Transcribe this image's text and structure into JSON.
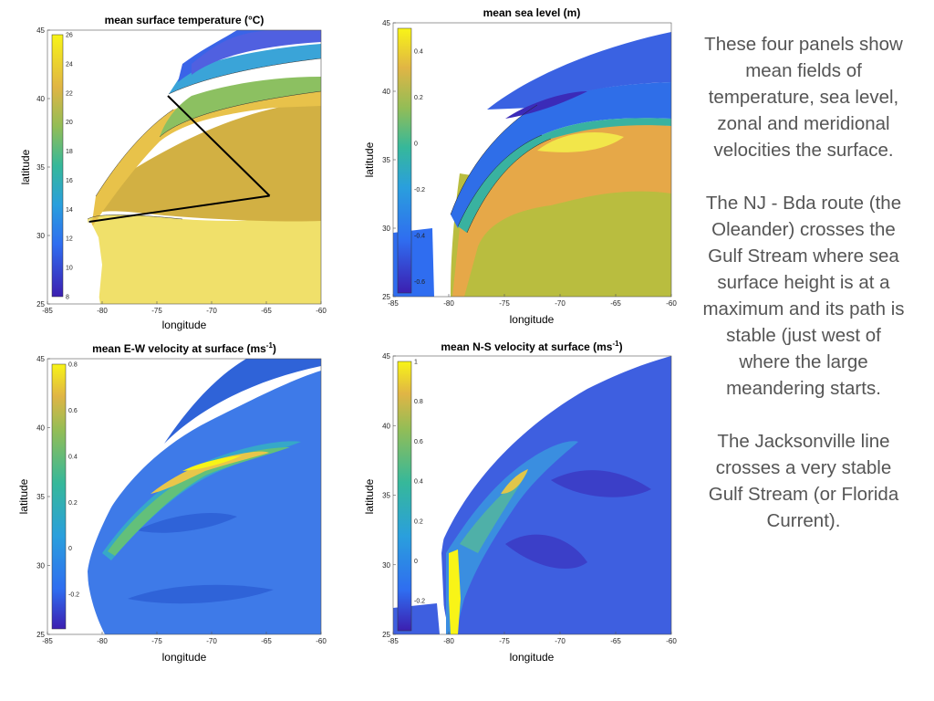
{
  "caption": {
    "paragraphs": [
      "These four panels show mean fields of temperature, sea level, zonal and meridional velocities the surface.",
      "The NJ - Bda route (the Oleander) crosses the Gulf Stream where sea surface height is at a maximum and its path is stable (just west of where the large meandering starts.",
      "The Jacksonville line crosses a very stable Gulf Stream (or Florida Current)."
    ]
  },
  "chart_data": [
    {
      "type": "heatmap",
      "title": "mean surface temperature (°C)",
      "xlabel": "longitude",
      "ylabel": "latitude",
      "xlim": [
        -85,
        -60
      ],
      "ylim": [
        25,
        45
      ],
      "xticks": [
        "-85",
        "-80",
        "-75",
        "-70",
        "-65",
        "-60"
      ],
      "yticks": [
        "25",
        "30",
        "35",
        "40",
        "45"
      ],
      "colorbar": {
        "range": [
          8,
          26
        ],
        "ticks": [
          "8",
          "10",
          "12",
          "14",
          "16",
          "18",
          "20",
          "22",
          "24",
          "26"
        ]
      },
      "route_lines": [
        {
          "name": "NJ - Bda",
          "points": [
            [
              -74,
              40.2
            ],
            [
              -64.7,
              32.9
            ]
          ]
        },
        {
          "name": "Jacksonville - Bda",
          "points": [
            [
              -81.2,
              31.0
            ],
            [
              -64.7,
              32.9
            ]
          ]
        }
      ]
    },
    {
      "type": "heatmap",
      "title": "mean sea level (m)",
      "xlabel": "longitude",
      "ylabel": "latitude",
      "xlim": [
        -85,
        -60
      ],
      "ylim": [
        25,
        45
      ],
      "xticks": [
        "-85",
        "-80",
        "-75",
        "-70",
        "-65",
        "-60"
      ],
      "yticks": [
        "25",
        "30",
        "35",
        "40",
        "45"
      ],
      "colorbar": {
        "range": [
          -0.65,
          0.5
        ],
        "ticks": [
          "-0.6",
          "-0.4",
          "-0.2",
          "0",
          "0.2",
          "0.4"
        ]
      }
    },
    {
      "type": "heatmap",
      "title_main": "mean E-W velocity at surface (ms",
      "title_sup": "-1",
      "title_end": ")",
      "xlabel": "longitude",
      "ylabel": "latitude",
      "xlim": [
        -85,
        -60
      ],
      "ylim": [
        25,
        45
      ],
      "xticks": [
        "-85",
        "-80",
        "-75",
        "-70",
        "-65",
        "-60"
      ],
      "yticks": [
        "25",
        "30",
        "35",
        "40",
        "45"
      ],
      "colorbar": {
        "range": [
          -0.35,
          0.8
        ],
        "ticks": [
          "-0.2",
          "0",
          "0.2",
          "0.4",
          "0.6",
          "0.8"
        ]
      }
    },
    {
      "type": "heatmap",
      "title_main": "mean N-S velocity at surface (ms",
      "title_sup": "-1",
      "title_end": ")",
      "xlabel": "longitude",
      "ylabel": "latitude",
      "xlim": [
        -85,
        -60
      ],
      "ylim": [
        25,
        45
      ],
      "xticks": [
        "-85",
        "-80",
        "-75",
        "-70",
        "-65",
        "-60"
      ],
      "yticks": [
        "25",
        "30",
        "35",
        "40",
        "45"
      ],
      "colorbar": {
        "range": [
          -0.35,
          1.0
        ],
        "ticks": [
          "-0.2",
          "0",
          "0.2",
          "0.4",
          "0.6",
          "0.8",
          "1"
        ]
      }
    }
  ]
}
